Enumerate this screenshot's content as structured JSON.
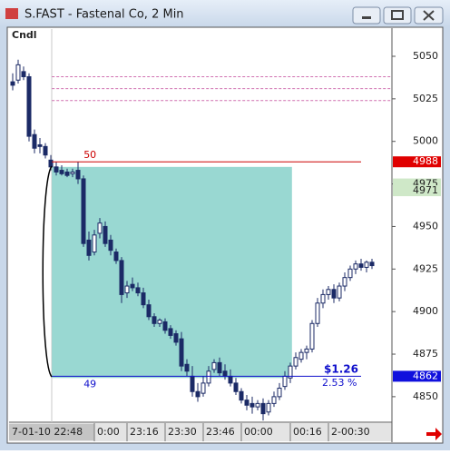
{
  "window": {
    "title": "S.FAST - Fastenal Co, 2 Min"
  },
  "chart_data": {
    "type": "candlestick",
    "label": "Cndl",
    "open": [
      5035,
      5036,
      5041,
      5038,
      5004,
      4998,
      4997,
      4989,
      4985,
      4983,
      4982,
      4981,
      4983,
      4978,
      4942,
      4935,
      4946,
      4950,
      4942,
      4935,
      4930,
      4911,
      4916,
      4914,
      4911,
      4904,
      4897,
      4893,
      4894,
      4890,
      4887,
      4884,
      4869,
      4862,
      4853,
      4852,
      4858,
      4866,
      4870,
      4865,
      4862,
      4858,
      4853,
      4848,
      4846,
      4844,
      4846,
      4841,
      4846,
      4850,
      4856,
      4861,
      4868,
      4872,
      4876,
      4878,
      4893,
      4905,
      4910,
      4913,
      4908,
      4915,
      4920,
      4925,
      4928,
      4926,
      4929
    ],
    "high": [
      5040,
      5048,
      5044,
      5040,
      5007,
      5002,
      4999,
      4992,
      4988,
      4986,
      4984,
      4984,
      4988,
      4980,
      4947,
      4948,
      4955,
      4953,
      4945,
      4937,
      4932,
      4918,
      4920,
      4917,
      4914,
      4907,
      4899,
      4896,
      4896,
      4892,
      4889,
      4888,
      4872,
      4868,
      4858,
      4862,
      4868,
      4872,
      4873,
      4869,
      4866,
      4861,
      4855,
      4851,
      4850,
      4848,
      4849,
      4848,
      4853,
      4858,
      4865,
      4870,
      4876,
      4878,
      4880,
      4895,
      4908,
      4913,
      4915,
      4916,
      4917,
      4923,
      4927,
      4930,
      4931,
      4930,
      4931
    ],
    "low": [
      5030,
      5034,
      5036,
      5000,
      4993,
      4993,
      4990,
      4983,
      4980,
      4980,
      4979,
      4979,
      4975,
      4938,
      4930,
      4933,
      4943,
      4938,
      4933,
      4928,
      4905,
      4908,
      4912,
      4909,
      4902,
      4895,
      4891,
      4891,
      4887,
      4884,
      4880,
      4865,
      4862,
      4850,
      4847,
      4850,
      4856,
      4864,
      4862,
      4860,
      4856,
      4851,
      4846,
      4842,
      4840,
      4842,
      4836,
      4839,
      4844,
      4848,
      4854,
      4858,
      4866,
      4870,
      4872,
      4876,
      4891,
      4902,
      4907,
      4905,
      4906,
      4912,
      4918,
      4922,
      4924,
      4923,
      4925
    ],
    "close": [
      5033,
      5045,
      5038,
      5003,
      4996,
      4997,
      4992,
      4985,
      4982,
      4981,
      4980,
      4982,
      4978,
      4940,
      4933,
      4945,
      4952,
      4940,
      4936,
      4930,
      4910,
      4915,
      4914,
      4911,
      4904,
      4897,
      4893,
      4895,
      4889,
      4886,
      4882,
      4868,
      4865,
      4853,
      4850,
      4858,
      4865,
      4870,
      4864,
      4862,
      4858,
      4853,
      4848,
      4845,
      4844,
      4846,
      4840,
      4846,
      4850,
      4855,
      4862,
      4868,
      4873,
      4876,
      4878,
      4893,
      4905,
      4910,
      4913,
      4908,
      4915,
      4920,
      4925,
      4928,
      4926,
      4929,
      4927
    ],
    "up_color": "#ffffff",
    "down_color": "#1b2a66",
    "xlim": [
      -0.5,
      69.5
    ],
    "xticks": [
      {
        "value": -0.5,
        "label": "7-01-10 22:48"
      },
      {
        "value": 15,
        "label": "0:00"
      },
      {
        "value": 21,
        "label": "23:16"
      },
      {
        "value": 28,
        "label": "23:30"
      },
      {
        "value": 35,
        "label": "23:46"
      },
      {
        "value": 42,
        "label": "00:00"
      },
      {
        "value": 51,
        "label": "00:16"
      },
      {
        "value": 58,
        "label": "2-00:30"
      }
    ],
    "ylim": [
      4835,
      5066
    ],
    "yticks": [
      4850,
      4875,
      4900,
      4925,
      4950,
      4975,
      5000,
      5025,
      5050
    ],
    "dashed_levels": [
      5038,
      5031,
      5024
    ],
    "dashed_color": "#d070b0",
    "levels": [
      {
        "label": "50",
        "value": 4988,
        "color": "#cc0000"
      },
      {
        "label": "49",
        "value": 4862,
        "color": "#1010cc"
      }
    ],
    "level_span": [
      7.2,
      64
    ],
    "zone": {
      "x": [
        7.2,
        51.3
      ],
      "y": [
        4861,
        4985
      ],
      "color": "#93d6d0"
    },
    "price_markers": [
      {
        "value": 4988,
        "color": "#e00000"
      },
      {
        "value": 4975,
        "color": "#cfe8c8"
      },
      {
        "value": 4971,
        "color": "#cfe8c8"
      },
      {
        "value": 4862,
        "color": "#1010dd"
      }
    ],
    "annotations": [
      "$1.26",
      "2.53 %"
    ]
  }
}
